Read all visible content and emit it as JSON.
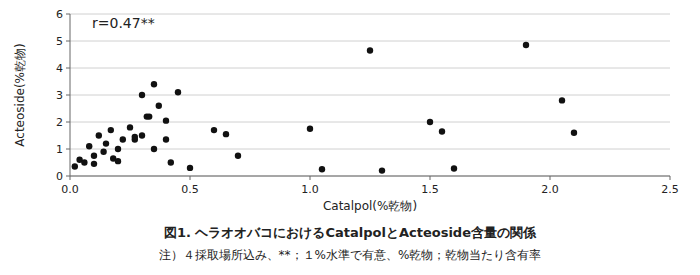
{
  "chart_data": {
    "type": "scatter",
    "title": "図1. ヘラオオバコにおけるCatalpolとActeoside含量の関係",
    "subtitle": "注）４採取場所込み、**；１%水準で有意、%乾物；乾物当たり含有率",
    "x_label": "Catalpol(%乾物)",
    "y_label": "Acteoside(%乾物)",
    "annotation": "r=0.47**",
    "x": [
      0.02,
      0.04,
      0.06,
      0.08,
      0.1,
      0.1,
      0.12,
      0.14,
      0.15,
      0.17,
      0.18,
      0.2,
      0.2,
      0.22,
      0.25,
      0.27,
      0.27,
      0.3,
      0.3,
      0.32,
      0.33,
      0.35,
      0.35,
      0.37,
      0.4,
      0.4,
      0.42,
      0.45,
      0.5,
      0.6,
      0.65,
      0.7,
      1.0,
      1.05,
      1.25,
      1.3,
      1.5,
      1.55,
      1.6,
      1.9,
      2.05,
      2.1
    ],
    "values": [
      0.35,
      0.6,
      0.5,
      1.1,
      0.75,
      0.45,
      1.5,
      0.9,
      1.2,
      1.7,
      0.65,
      1.0,
      0.55,
      1.35,
      1.8,
      1.35,
      1.45,
      3.0,
      1.5,
      2.2,
      2.2,
      1.0,
      3.4,
      2.6,
      2.05,
      1.35,
      0.5,
      3.1,
      0.3,
      1.7,
      1.55,
      0.75,
      1.75,
      0.25,
      4.65,
      0.2,
      2.0,
      1.65,
      0.28,
      4.85,
      2.8,
      1.6
    ],
    "color": "#111111",
    "xlim": [
      0,
      2.5
    ],
    "ylim": [
      0,
      6
    ],
    "xticks": [
      {
        "value": 0,
        "label": "0.0"
      },
      0.5,
      {
        "value": 1,
        "label": "1.0"
      },
      1.5,
      {
        "value": 2,
        "label": "2.0"
      },
      2.5
    ],
    "yticks": [
      0,
      1,
      2,
      3,
      4,
      5,
      6
    ],
    "grid": true
  }
}
